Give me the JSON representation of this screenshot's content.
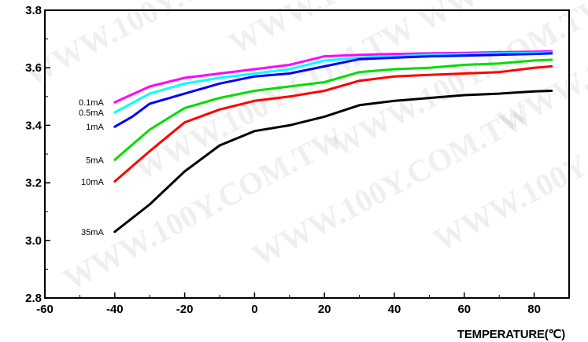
{
  "watermark": "WWW.100Y.COM.TW",
  "chart_data": {
    "type": "line",
    "xlabel": "TEMPERATURE(℃)",
    "ylabel": "",
    "xlim": [
      -60,
      90
    ],
    "ylim": [
      2.8,
      3.8
    ],
    "x_ticks": [
      -60,
      -40,
      -20,
      0,
      20,
      40,
      60,
      80
    ],
    "x_tick_labels": [
      "-60",
      "-40",
      "-20",
      "0",
      "20",
      "40",
      "60",
      "80"
    ],
    "y_ticks": [
      2.8,
      3.0,
      3.2,
      3.4,
      3.6,
      3.8
    ],
    "y_tick_labels": [
      "2.8",
      "3.0",
      "3.2",
      "3.4",
      "3.6",
      "3.8"
    ],
    "grid": false,
    "series": [
      {
        "name": "0.1mA",
        "color": "#ff00ff",
        "x": [
          -40,
          -30,
          -20,
          -10,
          0,
          10,
          20,
          30,
          40,
          50,
          60,
          70,
          80,
          85
        ],
        "y": [
          3.48,
          3.535,
          3.565,
          3.58,
          3.595,
          3.61,
          3.64,
          3.645,
          3.648,
          3.65,
          3.652,
          3.654,
          3.656,
          3.657
        ]
      },
      {
        "name": "0.5mA",
        "color": "#00ffff",
        "x": [
          -40,
          -30,
          -20,
          -10,
          0,
          10,
          20,
          30,
          40,
          50,
          60,
          70,
          80,
          85
        ],
        "y": [
          3.445,
          3.51,
          3.545,
          3.565,
          3.58,
          3.595,
          3.625,
          3.635,
          3.64,
          3.645,
          3.648,
          3.65,
          3.652,
          3.653
        ]
      },
      {
        "name": "1mA",
        "color": "#0000ff",
        "x": [
          -40,
          -35,
          -30,
          -20,
          -10,
          0,
          10,
          20,
          30,
          40,
          50,
          60,
          70,
          80,
          85
        ],
        "y": [
          3.395,
          3.43,
          3.475,
          3.51,
          3.545,
          3.57,
          3.58,
          3.605,
          3.63,
          3.635,
          3.64,
          3.642,
          3.645,
          3.648,
          3.65
        ]
      },
      {
        "name": "5mA",
        "color": "#00dd00",
        "x": [
          -40,
          -30,
          -20,
          -10,
          0,
          10,
          20,
          30,
          40,
          50,
          60,
          70,
          80,
          85
        ],
        "y": [
          3.28,
          3.385,
          3.46,
          3.495,
          3.52,
          3.535,
          3.55,
          3.585,
          3.595,
          3.6,
          3.61,
          3.615,
          3.625,
          3.628
        ]
      },
      {
        "name": "10mA",
        "color": "#ff0000",
        "x": [
          -40,
          -30,
          -20,
          -10,
          0,
          10,
          20,
          30,
          40,
          50,
          60,
          70,
          80,
          85
        ],
        "y": [
          3.205,
          3.31,
          3.41,
          3.455,
          3.485,
          3.5,
          3.52,
          3.555,
          3.57,
          3.575,
          3.58,
          3.585,
          3.6,
          3.605
        ]
      },
      {
        "name": "35mA",
        "color": "#000000",
        "x": [
          -40,
          -30,
          -20,
          -10,
          0,
          10,
          20,
          30,
          40,
          50,
          60,
          70,
          80,
          85
        ],
        "y": [
          3.03,
          3.125,
          3.24,
          3.33,
          3.38,
          3.4,
          3.43,
          3.47,
          3.485,
          3.495,
          3.505,
          3.51,
          3.518,
          3.52
        ]
      }
    ]
  }
}
